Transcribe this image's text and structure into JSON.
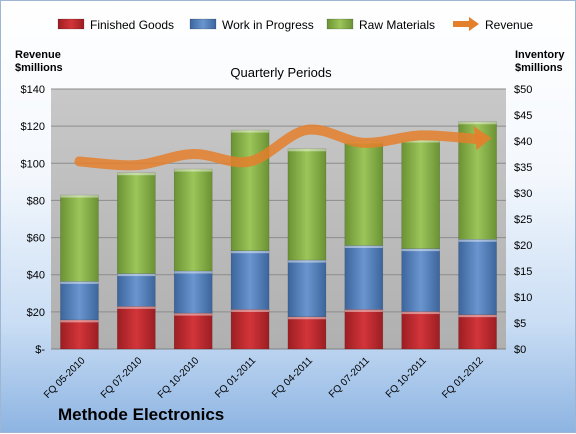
{
  "company": "Methode Electronics",
  "colors": {
    "finished": "#c0272d",
    "wip": "#4f7fbd",
    "raw": "#86b145",
    "revenue": "#e47f2c",
    "plot_bg": "#b4b4b4"
  },
  "chart_data": {
    "type": "bar",
    "stacked": true,
    "title": "Quarterly Periods",
    "ylabel_left": "Revenue\n$millions",
    "ylabel_right": "Inventory\n$millions",
    "legend_position": "top",
    "grid": true,
    "ylim_left": [
      0,
      140
    ],
    "ylim_right": [
      0,
      50
    ],
    "left_ticks": [
      "$-",
      "$20",
      "$40",
      "$60",
      "$80",
      "$100",
      "$120",
      "$140"
    ],
    "right_ticks": [
      "$0",
      "$5",
      "$10",
      "$15",
      "$20",
      "$25",
      "$30",
      "$35",
      "$40",
      "$45",
      "$50"
    ],
    "categories": [
      "FQ 05-2010",
      "FQ 07-2010",
      "FQ 10-2010",
      "FQ 01-2011",
      "FQ 04-2011",
      "FQ 07-2011",
      "FQ 10-2011",
      "FQ 01-2012"
    ],
    "series": [
      {
        "name": "Finished Goods",
        "axis": "right",
        "values": [
          5.6,
          8.2,
          6.9,
          7.6,
          6.2,
          7.6,
          7.2,
          6.6
        ]
      },
      {
        "name": "Work in Progress",
        "axis": "right",
        "values": [
          7.4,
          6.3,
          8.1,
          11.3,
          10.9,
          12.3,
          12.1,
          14.5
        ]
      },
      {
        "name": "Raw Materials",
        "axis": "right",
        "values": [
          16.6,
          19.4,
          19.6,
          23.2,
          21.4,
          20.1,
          20.9,
          22.6
        ]
      },
      {
        "name": "Revenue",
        "axis": "left",
        "type": "line",
        "values": [
          101,
          99,
          105,
          101,
          118,
          111,
          115,
          113
        ]
      }
    ]
  }
}
